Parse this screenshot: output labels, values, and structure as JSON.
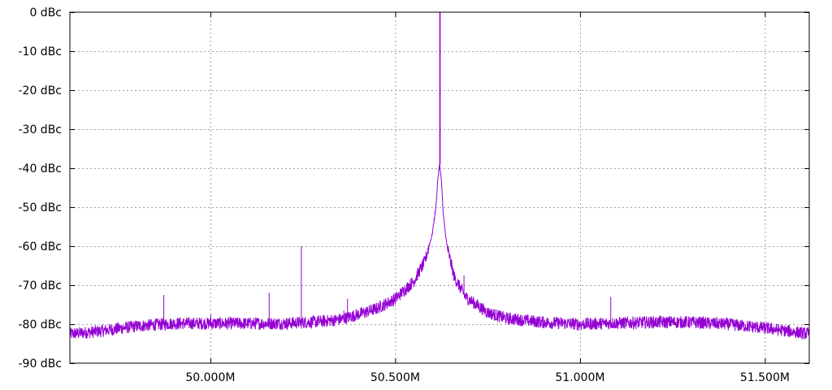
{
  "chart_data": {
    "type": "line",
    "title": "",
    "xlabel": "",
    "ylabel": "",
    "xlim": [
      49.62,
      51.62
    ],
    "ylim": [
      -90,
      0
    ],
    "grid": true,
    "legend": "none",
    "color": "#9400d3",
    "x_ticks": [
      {
        "value": 50.0,
        "label": "50.000M"
      },
      {
        "value": 50.5,
        "label": "50.500M"
      },
      {
        "value": 51.0,
        "label": "51.000M"
      },
      {
        "value": 51.5,
        "label": "51.500M"
      }
    ],
    "y_ticks": [
      {
        "value": 0,
        "label": "0 dBc"
      },
      {
        "value": -10,
        "label": "-10 dBc"
      },
      {
        "value": -20,
        "label": "-20 dBc"
      },
      {
        "value": -30,
        "label": "-30 dBc"
      },
      {
        "value": -40,
        "label": "-40 dBc"
      },
      {
        "value": -50,
        "label": "-50 dBc"
      },
      {
        "value": -60,
        "label": "-60 dBc"
      },
      {
        "value": -70,
        "label": "-70 dBc"
      },
      {
        "value": -80,
        "label": "-80 dBc"
      },
      {
        "value": -90,
        "label": "-90 dBc"
      }
    ],
    "series": [
      {
        "noise_floor": {
          "x": [
            49.62,
            49.7,
            49.8,
            49.9,
            50.0,
            50.1,
            50.2,
            50.3,
            50.35,
            50.4,
            50.45,
            50.5,
            50.55,
            50.58,
            50.6,
            50.61,
            50.615,
            50.62,
            50.625,
            50.63,
            50.64,
            50.66,
            50.69,
            50.75,
            50.8,
            50.9,
            51.0,
            51.1,
            51.2,
            51.3,
            51.4,
            51.5,
            51.62
          ],
          "y": [
            -82.5,
            -81.8,
            -80.5,
            -79.8,
            -79.8,
            -79.8,
            -79.8,
            -79.3,
            -78.8,
            -77.5,
            -76.0,
            -73.5,
            -69.0,
            -64.0,
            -57.0,
            -50.0,
            -43.0,
            -39.0,
            -43.0,
            -52.0,
            -60.0,
            -68.0,
            -73.0,
            -77.0,
            -78.5,
            -79.5,
            -80.0,
            -79.7,
            -79.5,
            -79.5,
            -80.0,
            -81.0,
            -82.5
          ]
        },
        "spurs": [
          {
            "x": 49.873,
            "y": -72.5
          },
          {
            "x": 50.0,
            "y": -77.5
          },
          {
            "x": 50.158,
            "y": -72.0
          },
          {
            "x": 50.245,
            "y": -60.0
          },
          {
            "x": 50.36,
            "y": -76.5
          },
          {
            "x": 50.37,
            "y": -73.5
          },
          {
            "x": 50.62,
            "y": 0
          },
          {
            "x": 50.685,
            "y": -67.5
          },
          {
            "x": 51.082,
            "y": -73.0
          },
          {
            "x": 51.245,
            "y": -78.0
          }
        ]
      }
    ]
  }
}
